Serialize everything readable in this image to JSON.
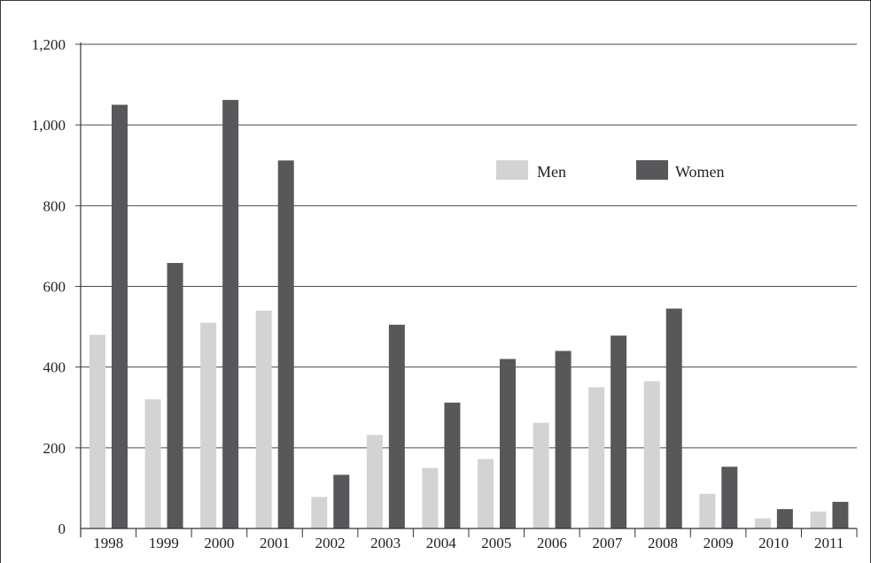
{
  "chart_data": {
    "type": "bar",
    "title": "",
    "xlabel": "",
    "ylabel": "",
    "categories": [
      "1998",
      "1999",
      "2000",
      "2001",
      "2002",
      "2003",
      "2004",
      "2005",
      "2006",
      "2007",
      "2008",
      "2009",
      "2010",
      "2011"
    ],
    "series": [
      {
        "name": "Men",
        "color": "#d3d3d3",
        "values": [
          480,
          320,
          510,
          540,
          78,
          232,
          150,
          172,
          262,
          350,
          365,
          86,
          25,
          42
        ]
      },
      {
        "name": "Women",
        "color": "#58585a",
        "values": [
          1050,
          658,
          1062,
          912,
          133,
          505,
          312,
          420,
          440,
          478,
          545,
          153,
          48,
          66
        ]
      }
    ],
    "ylim": [
      0,
      1200
    ],
    "yticks": [
      0,
      200,
      400,
      600,
      800,
      1000,
      1200
    ],
    "ytick_labels": [
      "0",
      "200",
      "400",
      "600",
      "800",
      "1,000",
      "1,200"
    ],
    "grid": true,
    "legend_position": "upper-right, inside plot"
  }
}
